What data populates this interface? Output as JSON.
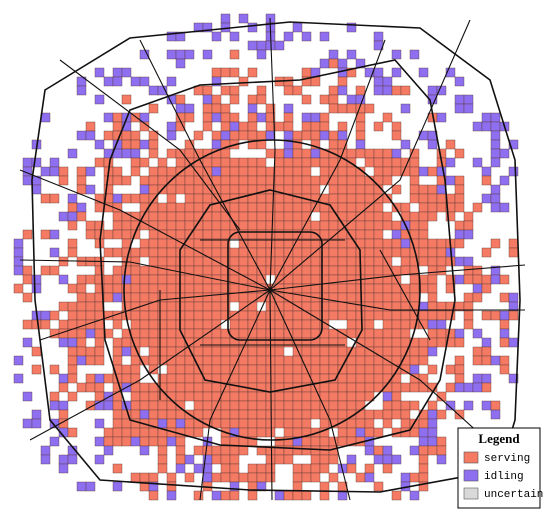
{
  "legend": {
    "title": "Legend",
    "items": [
      {
        "label": "serving",
        "color": "#f47a63"
      },
      {
        "label": "idling",
        "color": "#8e6ff0"
      },
      {
        "label": "uncertain",
        "color": "#d9d9d9"
      }
    ]
  }
}
